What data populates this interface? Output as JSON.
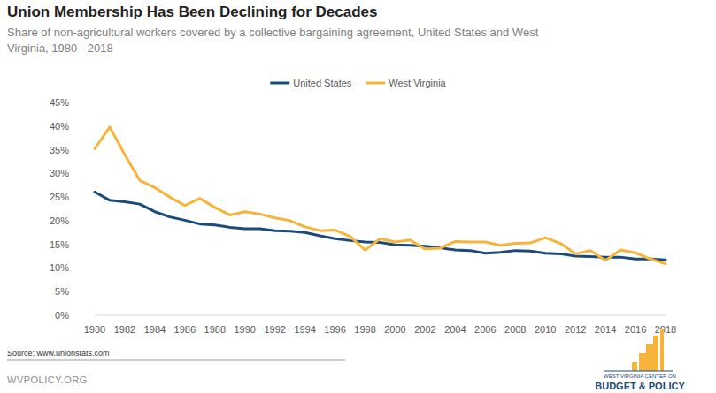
{
  "chart_data": {
    "type": "line",
    "title": "Union Membership Has Been Declining for Decades",
    "subtitle": [
      "Share of non-agricultural workers covered by a collective bargaining agreement, United States and West",
      "Virginia, 1980 - 2018"
    ],
    "x": [
      1980,
      1981,
      1982,
      1983,
      1984,
      1985,
      1986,
      1987,
      1988,
      1989,
      1990,
      1991,
      1992,
      1993,
      1994,
      1995,
      1996,
      1997,
      1998,
      1999,
      2000,
      2001,
      2002,
      2003,
      2004,
      2005,
      2006,
      2007,
      2008,
      2009,
      2010,
      2011,
      2012,
      2013,
      2014,
      2015,
      2016,
      2017,
      2018
    ],
    "series": [
      {
        "name": "United States",
        "color": "#1b4a7c",
        "values": [
          26.1,
          24.3,
          24.0,
          23.5,
          21.9,
          20.8,
          20.1,
          19.3,
          19.1,
          18.6,
          18.3,
          18.3,
          17.9,
          17.8,
          17.5,
          16.8,
          16.2,
          15.8,
          15.5,
          15.4,
          14.9,
          14.8,
          14.6,
          14.3,
          13.8,
          13.7,
          13.1,
          13.3,
          13.7,
          13.6,
          13.1,
          13.0,
          12.5,
          12.4,
          12.3,
          12.3,
          11.9,
          11.9,
          11.7
        ]
      },
      {
        "name": "West Virginia",
        "color": "#f6b43a",
        "values": [
          35.2,
          39.8,
          34.0,
          28.5,
          27.0,
          25.0,
          23.2,
          24.7,
          22.8,
          21.2,
          21.9,
          21.4,
          20.6,
          20.0,
          18.7,
          17.9,
          18.0,
          16.7,
          13.8,
          16.2,
          15.5,
          15.9,
          14.0,
          14.2,
          15.6,
          15.5,
          15.5,
          14.8,
          15.2,
          15.3,
          16.4,
          15.2,
          13.0,
          13.7,
          11.6,
          13.8,
          13.2,
          11.9,
          10.9
        ]
      }
    ],
    "xlim": [
      1980,
      2018
    ],
    "xticks": [
      1980,
      1982,
      1984,
      1986,
      1988,
      1990,
      1992,
      1994,
      1996,
      1998,
      2000,
      2002,
      2004,
      2006,
      2008,
      2010,
      2012,
      2014,
      2016,
      2018
    ],
    "ylim": [
      0,
      45
    ],
    "yticks": [
      {
        "value": 0,
        "label": "0%"
      },
      {
        "value": 5,
        "label": "5%"
      },
      {
        "value": 10,
        "label": "10%"
      },
      {
        "value": 15,
        "label": "15%"
      },
      {
        "value": 20,
        "label": "20%"
      },
      {
        "value": 25,
        "label": "25%"
      },
      {
        "value": 30,
        "label": "30%"
      },
      {
        "value": 35,
        "label": "35%"
      },
      {
        "value": 40,
        "label": "40%"
      },
      {
        "value": 45,
        "label": "45%"
      }
    ],
    "grid": false,
    "legend": "top",
    "source": "Source: www.unionstats.com",
    "footer": "WVPOLICY.ORG",
    "logo_lines": [
      "WEST VIRGINIA CENTER ON",
      "BUDGET & POLICY"
    ]
  }
}
